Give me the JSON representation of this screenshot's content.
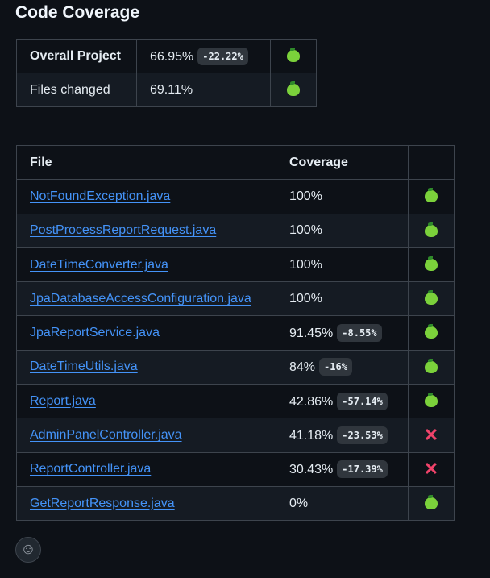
{
  "title": "Code Coverage",
  "summary": [
    {
      "label": "Overall Project",
      "value": "66.95%",
      "delta": "-22.22%",
      "status": "green-apple-icon"
    },
    {
      "label": "Files changed",
      "value": "69.11%",
      "delta": null,
      "status": "green-apple-icon"
    }
  ],
  "files": {
    "headers": [
      "File",
      "Coverage",
      ""
    ],
    "rows": [
      {
        "file": "NotFoundException.java",
        "coverage": "100%",
        "delta": null,
        "status": "pass"
      },
      {
        "file": "PostProcessReportRequest.java",
        "coverage": "100%",
        "delta": null,
        "status": "pass"
      },
      {
        "file": "DateTimeConverter.java",
        "coverage": "100%",
        "delta": null,
        "status": "pass"
      },
      {
        "file": "JpaDatabaseAccessConfiguration.java",
        "coverage": "100%",
        "delta": null,
        "status": "pass"
      },
      {
        "file": "JpaReportService.java",
        "coverage": "91.45%",
        "delta": "-8.55%",
        "status": "pass"
      },
      {
        "file": "DateTimeUtils.java",
        "coverage": "84%",
        "delta": "-16%",
        "status": "pass"
      },
      {
        "file": "Report.java",
        "coverage": "42.86%",
        "delta": "-57.14%",
        "status": "pass"
      },
      {
        "file": "AdminPanelController.java",
        "coverage": "41.18%",
        "delta": "-23.53%",
        "status": "fail"
      },
      {
        "file": "ReportController.java",
        "coverage": "30.43%",
        "delta": "-17.39%",
        "status": "fail"
      },
      {
        "file": "GetReportResponse.java",
        "coverage": "0%",
        "delta": null,
        "status": "pass"
      }
    ]
  },
  "colors": {
    "pass": "#7bd13b",
    "fail": "#f0436a",
    "link": "#4493f8"
  },
  "reaction_icon": "smiley-icon"
}
